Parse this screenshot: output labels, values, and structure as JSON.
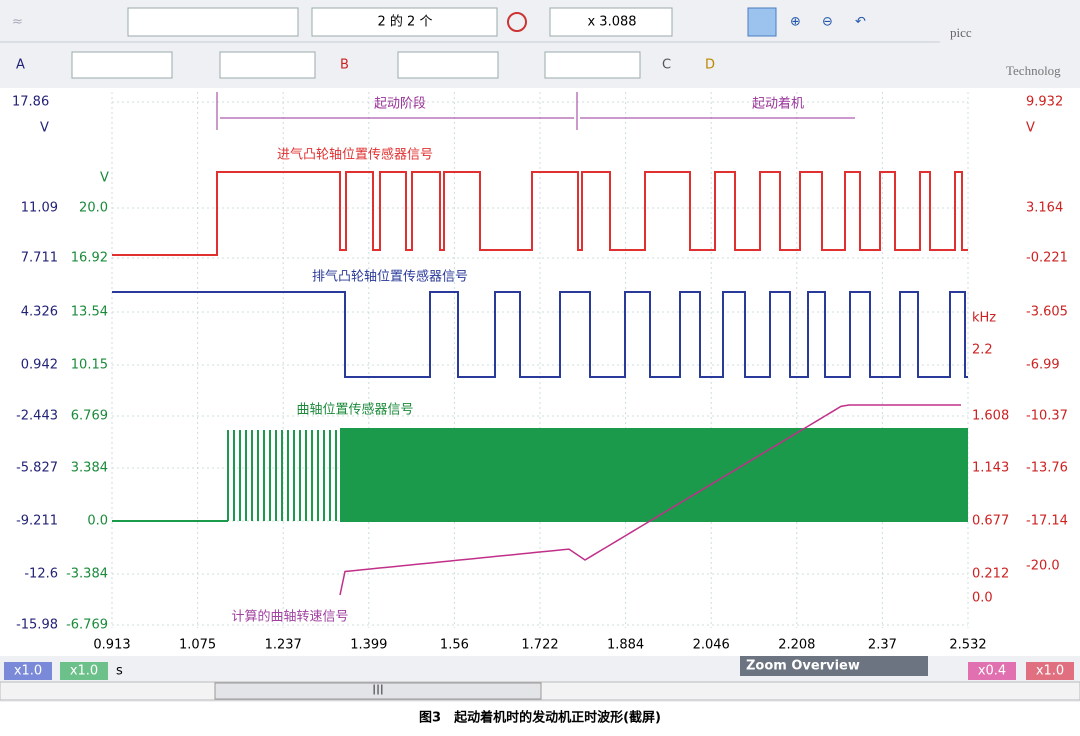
{
  "toolbar": {
    "page_counter": "2 的 2 个",
    "zoom": "x 3.088",
    "channels": [
      "A",
      "B",
      "C",
      "D"
    ],
    "logo": "picc",
    "logo_sub": "Technolog"
  },
  "axes": {
    "left_outer": {
      "top": "17.86",
      "unit": "V",
      "ticks": [
        "11.09",
        "7.711",
        "4.326",
        "0.942",
        "-2.443",
        "-5.827",
        "-9.211",
        "-12.6",
        "-15.98"
      ]
    },
    "left_inner": {
      "unit": "V",
      "ticks": [
        "20.0",
        "16.92",
        "13.54",
        "10.15",
        "6.769",
        "3.384",
        "0.0",
        "-3.384",
        "-6.769"
      ]
    },
    "right_outer": {
      "top": "9.932",
      "unit": "V",
      "ticks": [
        "3.164",
        "-0.221",
        "-3.605",
        "-6.99",
        "-10.37",
        "-13.76",
        "-17.14",
        "-20.0"
      ]
    },
    "right_inner": {
      "unit": "kHz",
      "ticks": [
        "2.2",
        "1.608",
        "1.143",
        "0.677",
        "0.212",
        "0.0"
      ]
    }
  },
  "x_axis": {
    "ticks": [
      "0.913",
      "1.075",
      "1.237",
      "1.399",
      "1.56",
      "1.722",
      "1.884",
      "2.046",
      "2.208",
      "2.37",
      "2.532"
    ],
    "unit": "s"
  },
  "annotations": {
    "phase_start": "起动阶段",
    "phase_run": "起动着机",
    "intake": "进气凸轮轴位置传感器信号",
    "exhaust": "排气凸轮轴位置传感器信号",
    "crank": "曲轴位置传感器信号",
    "rpm": "计算的曲轴转速信号"
  },
  "footer": {
    "badges": [
      "x1.0",
      "x1.0",
      "x0.4",
      "x1.0"
    ],
    "zoom_overview": "Zoom Overview",
    "scroll": "III"
  },
  "caption": "图3　起动着机时的发动机正时波形(截屏)"
}
